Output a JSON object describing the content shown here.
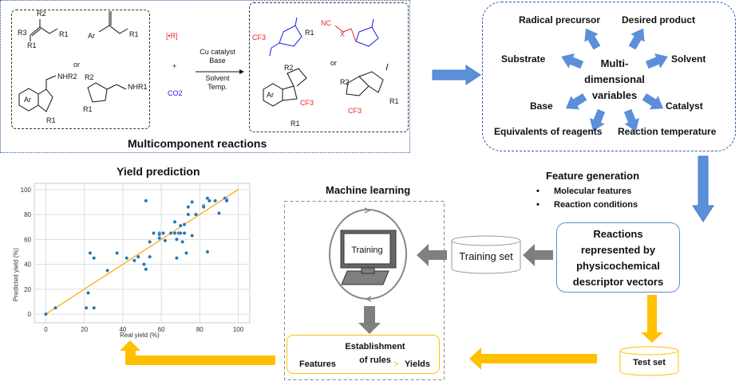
{
  "reactions_panel": {
    "title": "Multicomponent reactions",
    "or": "or",
    "radical": "[•R]",
    "plus": "+",
    "co2": "CO2",
    "conditions_above": [
      "Cu catalyst",
      "Base"
    ],
    "conditions_below": [
      "Solvent",
      "Temp."
    ],
    "labels": {
      "r1": "R1",
      "r2": "R2",
      "r3": "R3",
      "ar": "Ar",
      "nhr1": "NHR1",
      "nhr2": "NHR2",
      "cf3": "CF3",
      "nc": "NC",
      "x": "X"
    },
    "colors": {
      "reagent_red": "#e8262b",
      "carbamate_blue": "#1a1ae6",
      "border_blue": "#2e5fa6"
    }
  },
  "variables_panel": {
    "center": [
      "Multi-",
      "dimensional",
      "variables"
    ],
    "items": [
      "Radical precursor",
      "Desired product",
      "Substrate",
      "Solvent",
      "Base",
      "Catalyst",
      "Equivalents of reagents",
      "Reaction temperature"
    ],
    "arrow_color": "#5b8fd9"
  },
  "feature_generation": {
    "title": "Feature generation",
    "bullets": [
      "Molecular features",
      "Reaction conditions"
    ]
  },
  "reactions_box": {
    "lines": [
      "Reactions",
      "represented by",
      "physicochemical",
      "descriptor vectors"
    ]
  },
  "training_set": "Training set",
  "test_set": "Test set",
  "machine_learning": {
    "title": "Machine learning",
    "monitor_label": "Training",
    "rules_box": {
      "features": "Features",
      "title": [
        "Establishment",
        "of rules"
      ],
      "arrow": ">",
      "yields": "Yields"
    }
  },
  "colors": {
    "yellow": "#ffc000",
    "gray_arrow": "#7f7f7f",
    "blue_arrow": "#5b8fd9"
  },
  "chart_data": {
    "type": "scatter",
    "title": "Yield prediction",
    "xlabel": "Real yield (%)",
    "ylabel": "Predicted yield (%)",
    "xlim": [
      -6,
      106
    ],
    "ylim": [
      -7,
      105
    ],
    "xticks": [
      0,
      20,
      40,
      60,
      80,
      100
    ],
    "yticks": [
      0,
      20,
      40,
      60,
      80,
      100
    ],
    "grid": true,
    "point_color": "#1f77b4",
    "fit_line": {
      "x": [
        0,
        100
      ],
      "y": [
        0,
        100
      ],
      "color": "#ffa500"
    },
    "points": [
      [
        0,
        0
      ],
      [
        5,
        5
      ],
      [
        21,
        5
      ],
      [
        25,
        5
      ],
      [
        22,
        17
      ],
      [
        23,
        49
      ],
      [
        25,
        45
      ],
      [
        32,
        35
      ],
      [
        37,
        49
      ],
      [
        42,
        45
      ],
      [
        46,
        43
      ],
      [
        48,
        46
      ],
      [
        51,
        40
      ],
      [
        52,
        36
      ],
      [
        52,
        91
      ],
      [
        54,
        58
      ],
      [
        54,
        46
      ],
      [
        56,
        65
      ],
      [
        59,
        65
      ],
      [
        59,
        64
      ],
      [
        59,
        61
      ],
      [
        61,
        65
      ],
      [
        62,
        59
      ],
      [
        65,
        65
      ],
      [
        67,
        74
      ],
      [
        67,
        65
      ],
      [
        68,
        60
      ],
      [
        68,
        45
      ],
      [
        69,
        65
      ],
      [
        70,
        71
      ],
      [
        70,
        65
      ],
      [
        71,
        58
      ],
      [
        72,
        72
      ],
      [
        72,
        65
      ],
      [
        73,
        49
      ],
      [
        74,
        86
      ],
      [
        74,
        80
      ],
      [
        76,
        90
      ],
      [
        76,
        63
      ],
      [
        78,
        80
      ],
      [
        82,
        87
      ],
      [
        82,
        86
      ],
      [
        84,
        93
      ],
      [
        84,
        50
      ],
      [
        85,
        91
      ],
      [
        88,
        91
      ],
      [
        90,
        81
      ],
      [
        93,
        93
      ],
      [
        94,
        92
      ],
      [
        94,
        91
      ]
    ]
  }
}
